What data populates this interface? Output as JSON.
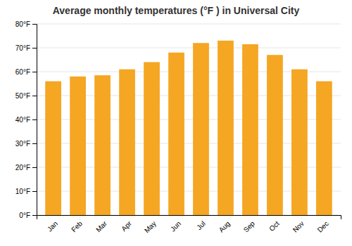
{
  "chart_data": {
    "type": "bar",
    "title": "Average monthly temperatures (°F ) in Universal City",
    "categories": [
      "Jan",
      "Feb",
      "Mar",
      "Apr",
      "May",
      "Jun",
      "Jul",
      "Aug",
      "Sep",
      "Oct",
      "Nov",
      "Dec"
    ],
    "values": [
      56,
      58,
      58.5,
      61,
      64,
      68,
      72,
      73,
      71.5,
      67,
      61,
      56
    ],
    "color": "#F5A623",
    "ylim": [
      0,
      80
    ],
    "yticks": [
      {
        "value": 0,
        "label": "0°F"
      },
      {
        "value": 10,
        "label": "10°F"
      },
      {
        "value": 20,
        "label": "20°F"
      },
      {
        "value": 30,
        "label": "30°F"
      },
      {
        "value": 40,
        "label": "40°F"
      },
      {
        "value": 50,
        "label": "50°F"
      },
      {
        "value": 60,
        "label": "60°F"
      },
      {
        "value": 70,
        "label": "70°F"
      },
      {
        "value": 80,
        "label": "80°F"
      }
    ],
    "grid": true
  }
}
